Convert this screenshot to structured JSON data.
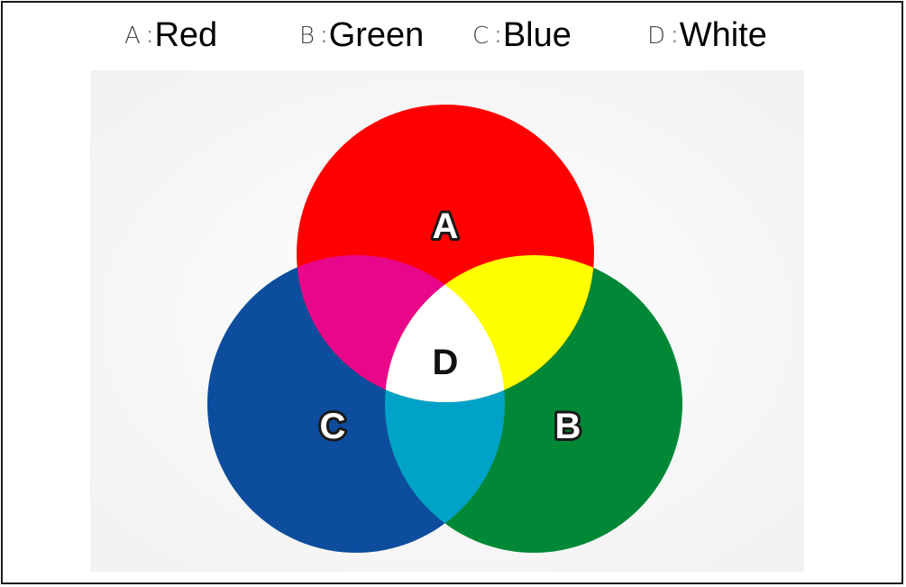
{
  "legend": [
    {
      "key": "A",
      "separator": ":",
      "name": "Red"
    },
    {
      "key": "B",
      "separator": ":",
      "name": "Green"
    },
    {
      "key": "C",
      "separator": ":",
      "name": "Blue"
    },
    {
      "key": "D",
      "separator": ":",
      "name": "White"
    }
  ],
  "diagram": {
    "labels": {
      "a": "A",
      "b": "B",
      "c": "C",
      "d": "D"
    },
    "colors": {
      "red": "#ff0000",
      "green": "#008837",
      "blue": "#0c4d9e",
      "magenta": "#e8078a",
      "yellow": "#ffff00",
      "cyan": "#00a2c8",
      "white": "#ffffff",
      "background": "#f2f2f2"
    }
  }
}
